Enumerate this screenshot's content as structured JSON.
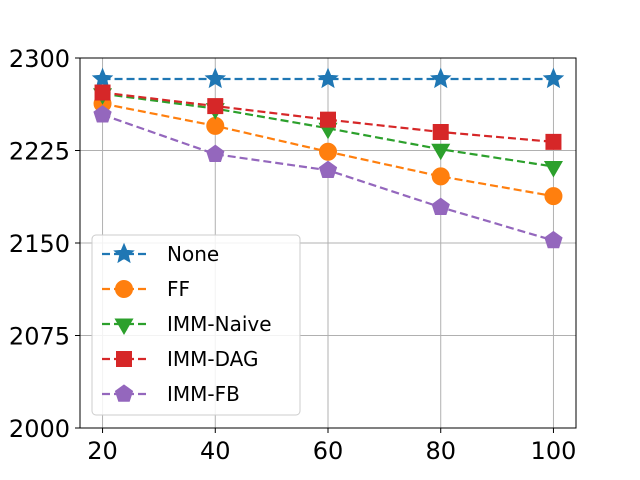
{
  "chart_data": {
    "type": "line",
    "x": [
      20,
      40,
      60,
      80,
      100
    ],
    "xlim": [
      16,
      104
    ],
    "ylim": [
      2000,
      2300
    ],
    "xticks": [
      "20",
      "40",
      "60",
      "80",
      "100"
    ],
    "yticks": [
      "2000",
      "2075",
      "2150",
      "2225",
      "2300"
    ],
    "ytick_values": [
      2000,
      2075,
      2150,
      2225,
      2300
    ],
    "grid": true,
    "legend_position": "lower-left",
    "series": [
      {
        "name": "None",
        "color": "#1f77b4",
        "marker": "star",
        "values": [
          2283,
          2283,
          2283,
          2283,
          2283
        ]
      },
      {
        "name": "FF",
        "color": "#ff7f0e",
        "marker": "circle",
        "values": [
          2263,
          2245,
          2224,
          2204,
          2188
        ]
      },
      {
        "name": "IMM-Naive",
        "color": "#2ca02c",
        "marker": "triangle-down",
        "values": [
          2271,
          2259,
          2243,
          2226,
          2212
        ]
      },
      {
        "name": "IMM-DAG",
        "color": "#d62728",
        "marker": "square",
        "values": [
          2272,
          2261,
          2250,
          2240,
          2232
        ]
      },
      {
        "name": "IMM-FB",
        "color": "#9467bd",
        "marker": "pentagon",
        "values": [
          2254,
          2222,
          2209,
          2179,
          2152
        ]
      }
    ]
  }
}
